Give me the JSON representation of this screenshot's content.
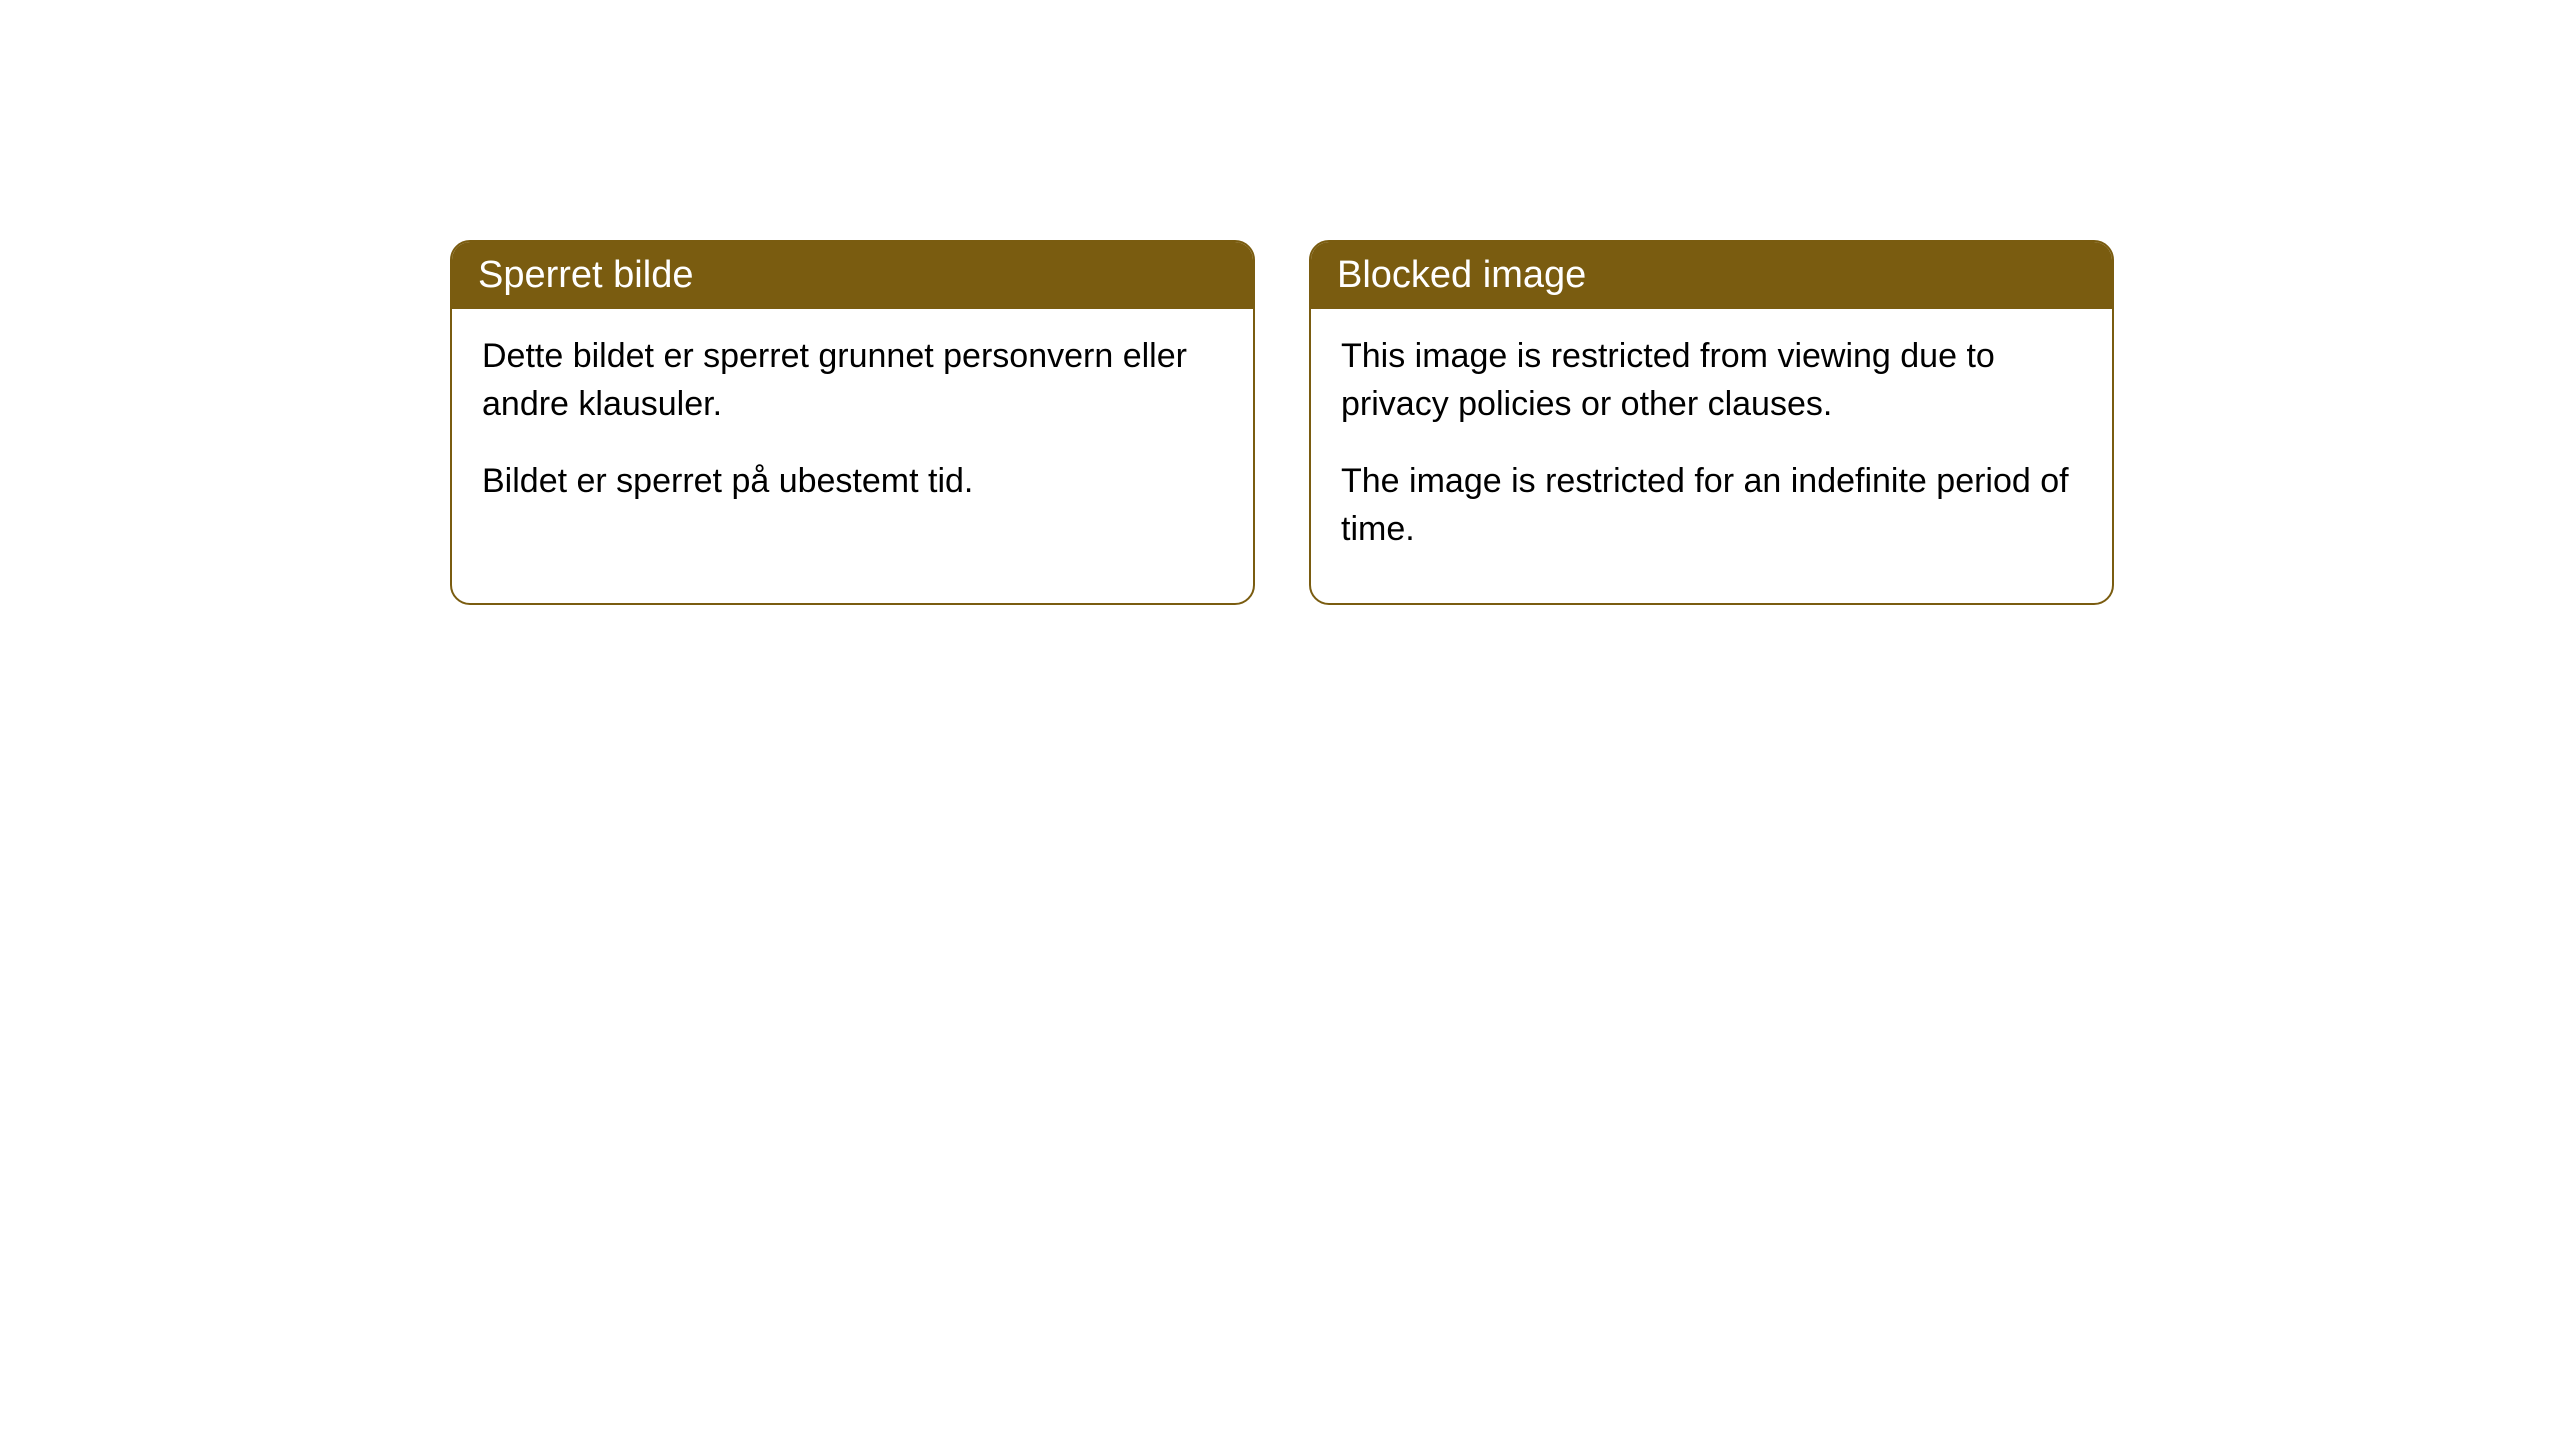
{
  "cards": [
    {
      "title": "Sperret bilde",
      "paragraph1": "Dette bildet er sperret grunnet personvern eller andre klausuler.",
      "paragraph2": "Bildet er sperret på ubestemt tid."
    },
    {
      "title": "Blocked image",
      "paragraph1": "This image is restricted from viewing due to privacy policies or other clauses.",
      "paragraph2": "The image is restricted for an indefinite period of time."
    }
  ],
  "styling": {
    "header_background": "#7a5c10",
    "header_text_color": "#ffffff",
    "card_border_color": "#7a5c10",
    "card_background": "#ffffff",
    "body_text_color": "#000000",
    "border_radius": 20,
    "title_fontsize": 38,
    "body_fontsize": 34
  }
}
